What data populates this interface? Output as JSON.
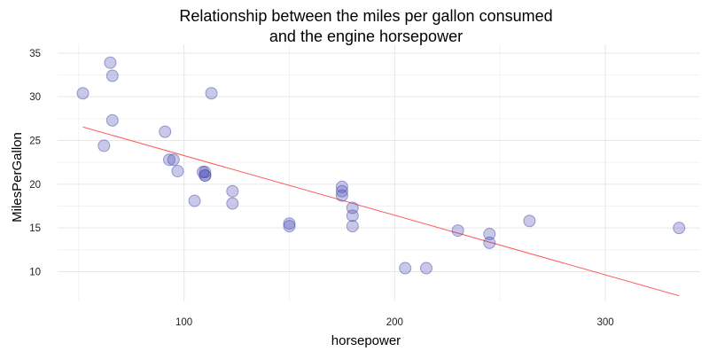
{
  "chart_data": {
    "type": "scatter",
    "title_lines": [
      "Relationship between the miles per gallon consumed",
      "and the engine horsepower"
    ],
    "xlabel": "horsepower",
    "ylabel": "MilesPerGallon",
    "xlim": [
      40,
      345
    ],
    "ylim": [
      6.6,
      36
    ],
    "x_ticks": [
      100,
      200,
      300
    ],
    "y_ticks": [
      10,
      15,
      20,
      25,
      30,
      35
    ],
    "x_minor_ticks": [
      50,
      150,
      250
    ],
    "y_minor_ticks": [
      12.5,
      17.5,
      22.5,
      27.5,
      32.5
    ],
    "grid": true,
    "points": [
      {
        "x": 110,
        "y": 21.0
      },
      {
        "x": 110,
        "y": 21.0
      },
      {
        "x": 93,
        "y": 22.8
      },
      {
        "x": 110,
        "y": 21.4
      },
      {
        "x": 175,
        "y": 18.7
      },
      {
        "x": 105,
        "y": 18.1
      },
      {
        "x": 245,
        "y": 14.3
      },
      {
        "x": 62,
        "y": 24.4
      },
      {
        "x": 95,
        "y": 22.8
      },
      {
        "x": 123,
        "y": 19.2
      },
      {
        "x": 123,
        "y": 17.8
      },
      {
        "x": 180,
        "y": 16.4
      },
      {
        "x": 180,
        "y": 17.3
      },
      {
        "x": 180,
        "y": 15.2
      },
      {
        "x": 205,
        "y": 10.4
      },
      {
        "x": 215,
        "y": 10.4
      },
      {
        "x": 230,
        "y": 14.7
      },
      {
        "x": 66,
        "y": 32.4
      },
      {
        "x": 52,
        "y": 30.4
      },
      {
        "x": 65,
        "y": 33.9
      },
      {
        "x": 97,
        "y": 21.5
      },
      {
        "x": 150,
        "y": 15.5
      },
      {
        "x": 150,
        "y": 15.2
      },
      {
        "x": 245,
        "y": 13.3
      },
      {
        "x": 175,
        "y": 19.2
      },
      {
        "x": 66,
        "y": 27.3
      },
      {
        "x": 91,
        "y": 26.0
      },
      {
        "x": 113,
        "y": 30.4
      },
      {
        "x": 264,
        "y": 15.8
      },
      {
        "x": 175,
        "y": 19.7
      },
      {
        "x": 335,
        "y": 15.0
      },
      {
        "x": 109,
        "y": 21.4
      }
    ],
    "fit_line": {
      "start": {
        "x": 52,
        "y": 26.55
      },
      "end": {
        "x": 335,
        "y": 7.24
      }
    },
    "point_color": "#5555bb",
    "point_stroke": "#3a3aa0",
    "point_opacity": 0.32,
    "fit_color": "#ff5a5a",
    "major_grid_color": "#e6e6e6",
    "minor_grid_color": "#f2f2f2"
  }
}
